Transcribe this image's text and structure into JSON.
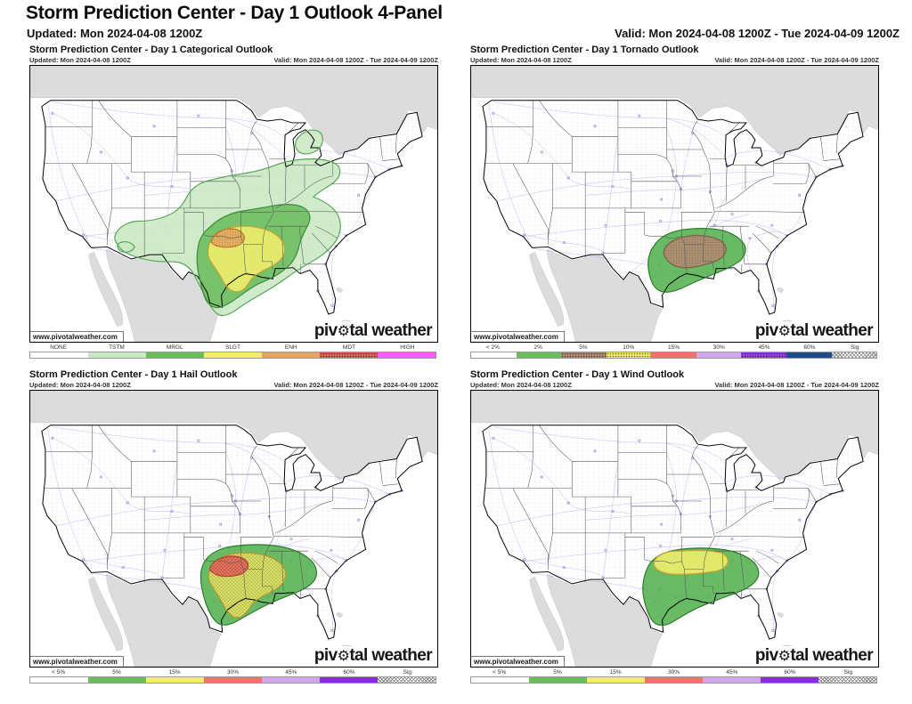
{
  "page": {
    "title": "Storm Prediction Center - Day 1 Outlook 4-Panel",
    "updated": "Updated: Mon 2024-04-08 1200Z",
    "valid": "Valid: Mon 2024-04-08 1200Z - Tue 2024-04-09 1200Z"
  },
  "branding": {
    "watermark": "www.pivotalweather.com",
    "logo_pre": "piv",
    "logo_gear": "⚙",
    "logo_post": "tal weather"
  },
  "panels": [
    {
      "id": "categorical",
      "title": "Storm Prediction Center - Day 1 Categorical Outlook",
      "updated": "Updated: Mon 2024-04-08 1200Z",
      "valid": "Valid: Mon 2024-04-08 1200Z - Tue 2024-04-09 1200Z",
      "legend": [
        {
          "label": "NONE",
          "color": "#ffffff"
        },
        {
          "label": "TSTM",
          "color": "#c9e8c3"
        },
        {
          "label": "MRGL",
          "color": "#6abc5d"
        },
        {
          "label": "SLGT",
          "color": "#f2ee6c"
        },
        {
          "label": "ENH",
          "color": "#e3a561"
        },
        {
          "label": "MDT",
          "color": "#e0625c",
          "pattern": "dots"
        },
        {
          "label": "HIGH",
          "color": "#f95df9"
        }
      ],
      "areas": {
        "TSTM": {
          "color": "#c9e8c3",
          "stroke": "#56a556"
        },
        "MRGL": {
          "color": "#6abc5d",
          "stroke": "#3b8a3b"
        },
        "SLGT": {
          "color": "#f2ee6c",
          "stroke": "#c9a12c"
        },
        "ENH": {
          "color": "#e3a561",
          "stroke": "#b5762b",
          "pattern": "dots"
        }
      }
    },
    {
      "id": "tornado",
      "title": "Storm Prediction Center - Day 1 Tornado Outlook",
      "updated": "Updated: Mon 2024-04-08 1200Z",
      "valid": "Valid: Mon 2024-04-08 1200Z - Tue 2024-04-09 1200Z",
      "legend": [
        {
          "label": "< 2%",
          "color": "#ffffff"
        },
        {
          "label": "2%",
          "color": "#6abc5d"
        },
        {
          "label": "5%",
          "color": "#b38a72",
          "pattern": "dots"
        },
        {
          "label": "10%",
          "color": "#f2ee6c",
          "pattern": "dots"
        },
        {
          "label": "15%",
          "color": "#f4716b"
        },
        {
          "label": "30%",
          "color": "#cfa6e8"
        },
        {
          "label": "45%",
          "color": "#9a3ee8",
          "pattern": "dots"
        },
        {
          "label": "60%",
          "color": "#1d4c86"
        },
        {
          "label": "Sig",
          "color": "#ffffff",
          "pattern": "sig"
        }
      ],
      "areas": {
        "2%": {
          "color": "#54b04e",
          "stroke": "#2c7a2c"
        },
        "5%": {
          "color": "#b38a72",
          "stroke": "#7d5b45",
          "pattern": "dots"
        }
      }
    },
    {
      "id": "hail",
      "title": "Storm Prediction Center - Day 1 Hail Outlook",
      "updated": "Updated: Mon 2024-04-08 1200Z",
      "valid": "Valid: Mon 2024-04-08 1200Z - Tue 2024-04-09 1200Z",
      "legend": [
        {
          "label": "< 5%",
          "color": "#ffffff"
        },
        {
          "label": "5%",
          "color": "#6abc5d"
        },
        {
          "label": "15%",
          "color": "#f2ee6c"
        },
        {
          "label": "30%",
          "color": "#f4716b"
        },
        {
          "label": "45%",
          "color": "#cfa6e8"
        },
        {
          "label": "60%",
          "color": "#8c2ce0"
        },
        {
          "label": "Sig",
          "color": "#ffffff",
          "pattern": "sig"
        }
      ],
      "areas": {
        "5%": {
          "color": "#54b04e",
          "stroke": "#2c7a2c"
        },
        "15%": {
          "color": "#f0ec68",
          "stroke": "#b8952c",
          "pattern": "hatch"
        },
        "30%": {
          "color": "#ee655e",
          "stroke": "#b03a33",
          "pattern": "hatch"
        }
      }
    },
    {
      "id": "wind",
      "title": "Storm Prediction Center - Day 1 Wind Outlook",
      "updated": "Updated: Mon 2024-04-08 1200Z",
      "valid": "Valid: Mon 2024-04-08 1200Z - Tue 2024-04-09 1200Z",
      "legend": [
        {
          "label": "< 5%",
          "color": "#ffffff"
        },
        {
          "label": "5%",
          "color": "#6abc5d"
        },
        {
          "label": "15%",
          "color": "#f2ee6c"
        },
        {
          "label": "30%",
          "color": "#f4716b"
        },
        {
          "label": "45%",
          "color": "#cfa6e8"
        },
        {
          "label": "60%",
          "color": "#8c2ce0"
        },
        {
          "label": "Sig",
          "color": "#ffffff",
          "pattern": "sig"
        }
      ],
      "areas": {
        "5%": {
          "color": "#54b04e",
          "stroke": "#2c7a2c"
        },
        "15%": {
          "color": "#f2ee6c",
          "stroke": "#c9a12c"
        }
      }
    }
  ]
}
